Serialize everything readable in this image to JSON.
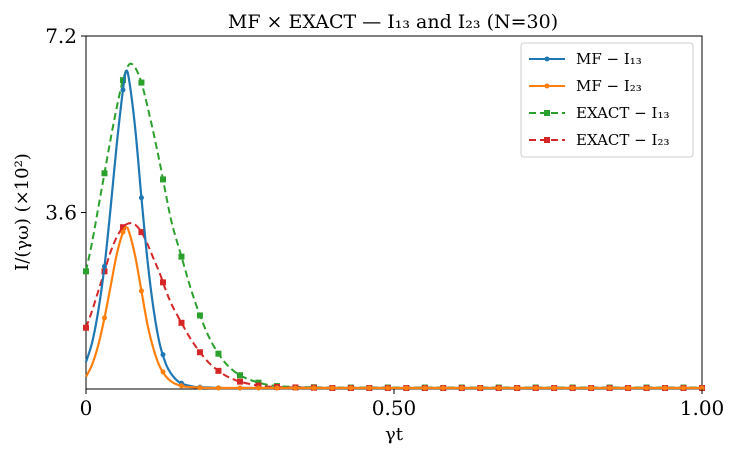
{
  "chart_data": {
    "type": "line",
    "title": "MF × EXACT — I₁₃ and I₂₃ (N=30)",
    "xlabel": "γt",
    "ylabel": "I/(γω) (×10²)",
    "xlim": [
      0,
      1.0
    ],
    "ylim": [
      0,
      7.2
    ],
    "x_ticks": [
      0,
      0.5,
      1.0
    ],
    "x_tick_labels": [
      "0",
      "0.50",
      "1.00"
    ],
    "y_ticks": [
      3.6,
      7.2
    ],
    "y_tick_labels": [
      "3.6",
      "7.2"
    ],
    "legend_position": "top-right",
    "grid": false,
    "series": [
      {
        "name": "MF − I₁₃",
        "legend_label": "MF  −  I₁₃",
        "color": "#1f77b4",
        "line_style": "solid",
        "marker": "circle",
        "x": [
          0,
          0.01,
          0.02,
          0.03,
          0.04,
          0.05,
          0.06,
          0.065,
          0.07,
          0.08,
          0.09,
          0.1,
          0.11,
          0.12,
          0.13,
          0.14,
          0.15,
          0.16,
          0.17,
          0.18,
          0.2,
          0.22,
          0.25,
          0.3,
          0.4,
          0.5,
          0.6,
          0.7,
          0.8,
          0.9,
          1.0
        ],
        "y": [
          0.55,
          0.95,
          1.6,
          2.5,
          3.7,
          5.0,
          6.1,
          6.48,
          6.3,
          5.3,
          3.9,
          2.6,
          1.6,
          0.9,
          0.5,
          0.28,
          0.15,
          0.09,
          0.06,
          0.04,
          0.03,
          0.02,
          0.02,
          0.02,
          0.02,
          0.02,
          0.02,
          0.02,
          0.02,
          0.02,
          0.02
        ],
        "marker_x": [
          0.03,
          0.06,
          0.09,
          0.125,
          0.155,
          0.185,
          0.215,
          0.25,
          0.28,
          0.31,
          0.34,
          0.37,
          0.4,
          0.43,
          0.46,
          0.49,
          0.52,
          0.55,
          0.58,
          0.61,
          0.64,
          0.67,
          0.7,
          0.73,
          0.76,
          0.79,
          0.82,
          0.85,
          0.88,
          0.91,
          0.94,
          0.97,
          1.0
        ]
      },
      {
        "name": "MF − I₂₃",
        "legend_label": "MF  −  I₂₃",
        "color": "#ff7f0e",
        "line_style": "solid",
        "marker": "circle",
        "x": [
          0,
          0.01,
          0.02,
          0.03,
          0.04,
          0.05,
          0.06,
          0.065,
          0.07,
          0.08,
          0.09,
          0.1,
          0.11,
          0.12,
          0.13,
          0.14,
          0.15,
          0.16,
          0.17,
          0.18,
          0.2,
          0.22,
          0.25,
          0.3,
          0.4,
          0.5,
          0.6,
          0.7,
          0.8,
          0.9,
          1.0
        ],
        "y": [
          0.25,
          0.5,
          0.9,
          1.45,
          2.1,
          2.75,
          3.2,
          3.3,
          3.2,
          2.7,
          2.0,
          1.3,
          0.8,
          0.45,
          0.25,
          0.14,
          0.08,
          0.05,
          0.04,
          0.03,
          0.02,
          0.02,
          0.02,
          0.02,
          0.02,
          0.02,
          0.02,
          0.02,
          0.02,
          0.02,
          0.02
        ],
        "marker_x": [
          0.03,
          0.06,
          0.09,
          0.125,
          0.155,
          0.185,
          0.215,
          0.25,
          0.28,
          0.31,
          0.34,
          0.37,
          0.4,
          0.43,
          0.46,
          0.49,
          0.52,
          0.55,
          0.58,
          0.61,
          0.64,
          0.67,
          0.7,
          0.73,
          0.76,
          0.79,
          0.82,
          0.85,
          0.88,
          0.91,
          0.94,
          0.97,
          1.0
        ]
      },
      {
        "name": "EXACT − I₁₃",
        "legend_label": "EXACT  −  I₁₃",
        "color": "#2ca02c",
        "line_style": "dashed",
        "marker": "square",
        "x": [
          0,
          0.01,
          0.02,
          0.03,
          0.04,
          0.05,
          0.06,
          0.07,
          0.08,
          0.09,
          0.1,
          0.11,
          0.12,
          0.13,
          0.14,
          0.155,
          0.17,
          0.185,
          0.2,
          0.215,
          0.23,
          0.25,
          0.28,
          0.31,
          0.35,
          0.4,
          0.5,
          0.6,
          0.7,
          0.8,
          0.9,
          1.0
        ],
        "y": [
          2.4,
          3.0,
          3.7,
          4.4,
          5.1,
          5.75,
          6.3,
          6.62,
          6.55,
          6.25,
          5.75,
          5.2,
          4.6,
          3.95,
          3.35,
          2.7,
          2.05,
          1.5,
          1.05,
          0.72,
          0.48,
          0.28,
          0.13,
          0.06,
          0.04,
          0.03,
          0.03,
          0.03,
          0.03,
          0.03,
          0.03,
          0.03
        ],
        "marker_x": [
          0,
          0.03,
          0.06,
          0.09,
          0.125,
          0.155,
          0.185,
          0.215,
          0.25,
          0.28,
          0.31,
          0.37,
          0.43,
          0.49,
          0.55,
          0.61,
          0.67,
          0.73,
          0.79,
          0.85,
          0.91,
          0.97
        ]
      },
      {
        "name": "EXACT − I₂₃",
        "legend_label": "EXACT − I₂₃",
        "color": "#d62728",
        "line_style": "dashed",
        "marker": "square",
        "x": [
          0,
          0.01,
          0.02,
          0.03,
          0.04,
          0.05,
          0.06,
          0.07,
          0.08,
          0.09,
          0.1,
          0.11,
          0.12,
          0.13,
          0.14,
          0.155,
          0.17,
          0.185,
          0.2,
          0.215,
          0.23,
          0.25,
          0.28,
          0.31,
          0.35,
          0.4,
          0.5,
          0.6,
          0.7,
          0.8,
          0.9,
          1.0
        ],
        "y": [
          1.25,
          1.6,
          2.0,
          2.4,
          2.8,
          3.1,
          3.3,
          3.38,
          3.35,
          3.2,
          2.95,
          2.65,
          2.35,
          2.0,
          1.7,
          1.35,
          1.02,
          0.75,
          0.53,
          0.37,
          0.25,
          0.15,
          0.07,
          0.04,
          0.03,
          0.02,
          0.02,
          0.02,
          0.02,
          0.02,
          0.02,
          0.02
        ],
        "marker_x": [
          0,
          0.03,
          0.06,
          0.09,
          0.125,
          0.155,
          0.185,
          0.215,
          0.25,
          0.28,
          0.31,
          0.34,
          0.37,
          0.4,
          0.43,
          0.46,
          0.49,
          0.52,
          0.55,
          0.58,
          0.61,
          0.64,
          0.67,
          0.7,
          0.73,
          0.76,
          0.79,
          0.82,
          0.85,
          0.88,
          0.91,
          0.94,
          0.97,
          1.0
        ]
      }
    ]
  }
}
